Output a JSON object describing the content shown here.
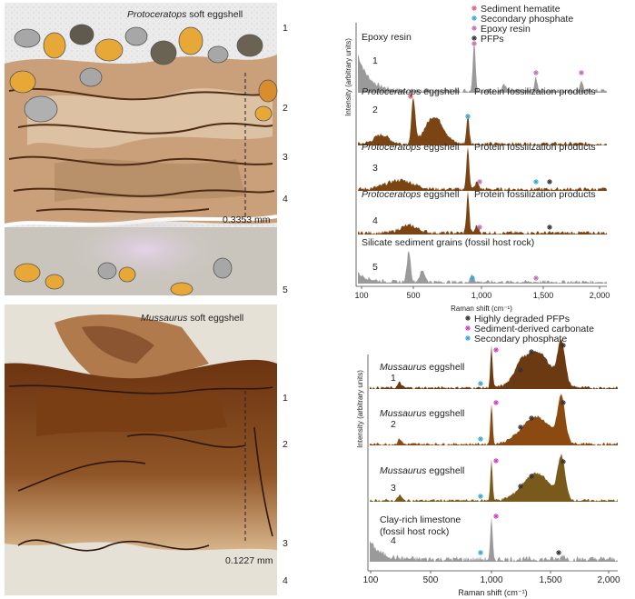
{
  "top": {
    "illustration": {
      "taxon": "Protoceratops",
      "rest": " soft eggshell",
      "layers": [
        "1",
        "2",
        "3",
        "4",
        "5"
      ],
      "scale": "0.3353 mm"
    },
    "spectra": {
      "y_label": "Intensity (arbitrary units)",
      "x_label": "Raman shift (cm⁻¹)",
      "x_ticks": [
        "100",
        "500",
        "1,000",
        "1,500",
        "2,000"
      ],
      "legend": [
        "Sediment hematite",
        "Secondary phosphate",
        "Epoxy resin",
        "PFPs"
      ],
      "traces": [
        {
          "title": "Epoxy resin",
          "number": "1"
        },
        {
          "taxon": "Protoceratops",
          "rest": " eggshell",
          "number": "2",
          "note": "Protein fossilization products"
        },
        {
          "taxon": "Protoceratops",
          "rest": " eggshell",
          "number": "3",
          "note": "Protein fossilization products"
        },
        {
          "taxon": "Protoceratops",
          "rest": " eggshell",
          "number": "4",
          "note": "Protein fossilization products"
        },
        {
          "title": "Silicate sediment grains (fossil host rock)",
          "number": "5"
        }
      ]
    }
  },
  "bottom": {
    "illustration": {
      "taxon": "Mussaurus",
      "rest": " soft eggshell",
      "layers": [
        "1",
        "2",
        "3",
        "4"
      ],
      "scale": "0.1227 mm"
    },
    "spectra": {
      "y_label": "Intensity (arbitrary units)",
      "x_label": "Raman shift (cm⁻¹)",
      "x_ticks": [
        "100",
        "500",
        "1,000",
        "1,500",
        "2,000"
      ],
      "legend": [
        "Highly degraded PFPs",
        "Sediment-derived carbonate",
        "Secondary phosphate"
      ],
      "traces": [
        {
          "taxon": "Mussaurus",
          "rest": " eggshell",
          "number": "1"
        },
        {
          "taxon": "Mussaurus",
          "rest": " eggshell",
          "number": "2"
        },
        {
          "taxon": "Mussaurus",
          "rest": " eggshell",
          "number": "3"
        },
        {
          "title": "Clay-rich limestone",
          "title2": "(fossil host rock)",
          "number": "4"
        }
      ]
    }
  }
}
